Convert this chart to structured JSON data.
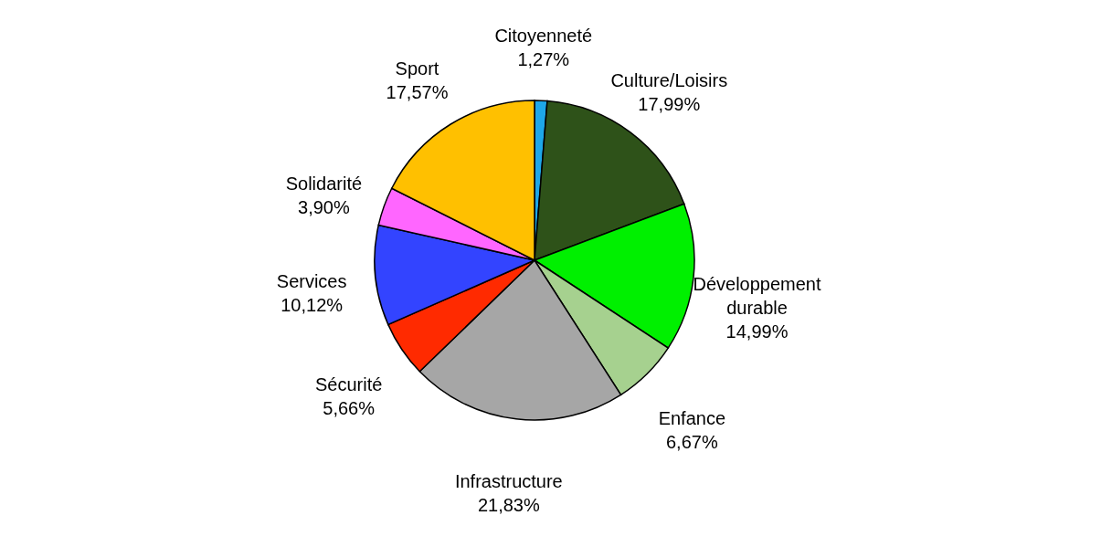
{
  "chart_data": {
    "type": "pie",
    "categories": [
      "Citoyenneté",
      "Culture/Loisirs",
      "Développement durable",
      "Enfance",
      "Infrastructure",
      "Sécurité",
      "Services",
      "Solidarité",
      "Sport"
    ],
    "values": [
      1.27,
      17.99,
      14.99,
      6.67,
      21.83,
      5.66,
      10.12,
      3.9,
      17.57
    ],
    "value_labels": [
      "1,27%",
      "17,99%",
      "14,99%",
      "6,67%",
      "21,83%",
      "5,66%",
      "10,12%",
      "3,90%",
      "17,57%"
    ],
    "colors": [
      "#1ea7e8",
      "#2e5219",
      "#00f000",
      "#a6d18f",
      "#a6a6a6",
      "#ff2a00",
      "#3344ff",
      "#ff66ff",
      "#ffc000"
    ],
    "legend": false
  }
}
